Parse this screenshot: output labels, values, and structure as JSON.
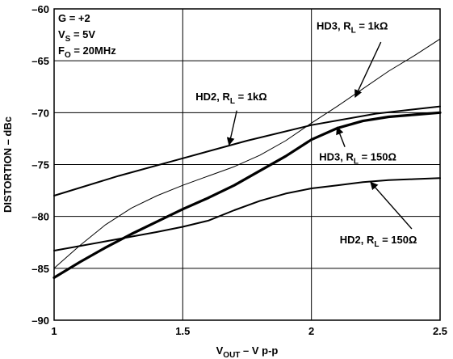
{
  "chart_data": {
    "type": "line",
    "ylabel": "DISTORTION – dBc",
    "xlabel": {
      "main": "V",
      "sub": "OUT",
      "rest": " – V p-p"
    },
    "xlim": [
      1,
      2.5
    ],
    "ylim": [
      -90,
      -60
    ],
    "xticks": [
      1,
      1.5,
      2,
      2.5
    ],
    "xtick_labels": [
      "1",
      "1.5",
      "2",
      "2.5"
    ],
    "yticks": [
      -90,
      -85,
      -80,
      -75,
      -70,
      -65,
      -60
    ],
    "ytick_labels": [
      "–90",
      "–85",
      "–80",
      "–75",
      "–70",
      "–65",
      "–60"
    ],
    "grid": true,
    "conditions": [
      {
        "main": "G = +2",
        "sub": "",
        "rest": ""
      },
      {
        "main": "V",
        "sub": "S",
        "rest": " = 5V"
      },
      {
        "main": "F",
        "sub": "O",
        "rest": " = 20MHz"
      }
    ],
    "series": [
      {
        "name": "HD3, RL = 1kΩ",
        "label": {
          "main": "HD3, R",
          "sub": "L",
          "rest": " = 1kΩ"
        },
        "weight": "thin",
        "x": [
          1.0,
          1.1,
          1.2,
          1.3,
          1.4,
          1.5,
          1.6,
          1.7,
          1.8,
          1.9,
          2.0,
          2.1,
          2.2,
          2.3,
          2.4,
          2.5
        ],
        "y": [
          -85.0,
          -82.8,
          -80.8,
          -79.2,
          -78.0,
          -77.0,
          -76.1,
          -75.2,
          -74.1,
          -72.7,
          -71.0,
          -69.4,
          -67.7,
          -66.0,
          -64.5,
          -62.9
        ]
      },
      {
        "name": "HD2, RL = 1kΩ",
        "label": {
          "main": "HD2, R",
          "sub": "L",
          "rest": " = 1kΩ"
        },
        "weight": "medium",
        "x": [
          1.0,
          1.25,
          1.5,
          1.75,
          2.0,
          2.25,
          2.5
        ],
        "y": [
          -78.0,
          -76.1,
          -74.4,
          -72.7,
          -71.2,
          -70.1,
          -69.4
        ]
      },
      {
        "name": "HD3, RL = 150Ω",
        "label": {
          "main": "HD3, R",
          "sub": "L",
          "rest": " = 150Ω"
        },
        "weight": "thick",
        "x": [
          1.0,
          1.1,
          1.2,
          1.3,
          1.4,
          1.5,
          1.6,
          1.7,
          1.8,
          1.9,
          2.0,
          2.1,
          2.2,
          2.3,
          2.4,
          2.5
        ],
        "y": [
          -85.9,
          -84.4,
          -83.0,
          -81.7,
          -80.5,
          -79.3,
          -78.2,
          -77.0,
          -75.6,
          -74.2,
          -72.6,
          -71.5,
          -70.8,
          -70.4,
          -70.2,
          -70.0
        ]
      },
      {
        "name": "HD2, RL = 150Ω",
        "label": {
          "main": "HD2, R",
          "sub": "L",
          "rest": " = 150Ω"
        },
        "weight": "medium",
        "x": [
          1.0,
          1.2,
          1.4,
          1.5,
          1.6,
          1.7,
          1.8,
          1.9,
          2.0,
          2.1,
          2.2,
          2.3,
          2.4,
          2.5
        ],
        "y": [
          -83.3,
          -82.4,
          -81.5,
          -81.0,
          -80.4,
          -79.4,
          -78.5,
          -77.8,
          -77.3,
          -77.0,
          -76.7,
          -76.5,
          -76.4,
          -76.3
        ]
      }
    ],
    "annotations": [
      {
        "series": 0,
        "label_pos": [
          2.02,
          -62.0
        ],
        "anchor": "start",
        "arrow_from": [
          2.27,
          -63.2
        ],
        "arrow_to": [
          2.17,
          -68.5
        ]
      },
      {
        "series": 1,
        "label_pos": [
          1.55,
          -68.8
        ],
        "anchor": "start",
        "arrow_from": [
          1.71,
          -69.8
        ],
        "arrow_to": [
          1.68,
          -73.1
        ]
      },
      {
        "series": 2,
        "label_pos": [
          2.03,
          -74.6
        ],
        "anchor": "start",
        "arrow_from": [
          2.13,
          -73.3
        ],
        "arrow_to": [
          2.1,
          -71.4
        ]
      },
      {
        "series": 3,
        "label_pos": [
          2.11,
          -82.6
        ],
        "anchor": "start",
        "arrow_from": [
          2.39,
          -81.2
        ],
        "arrow_to": [
          2.23,
          -76.7
        ]
      }
    ]
  }
}
